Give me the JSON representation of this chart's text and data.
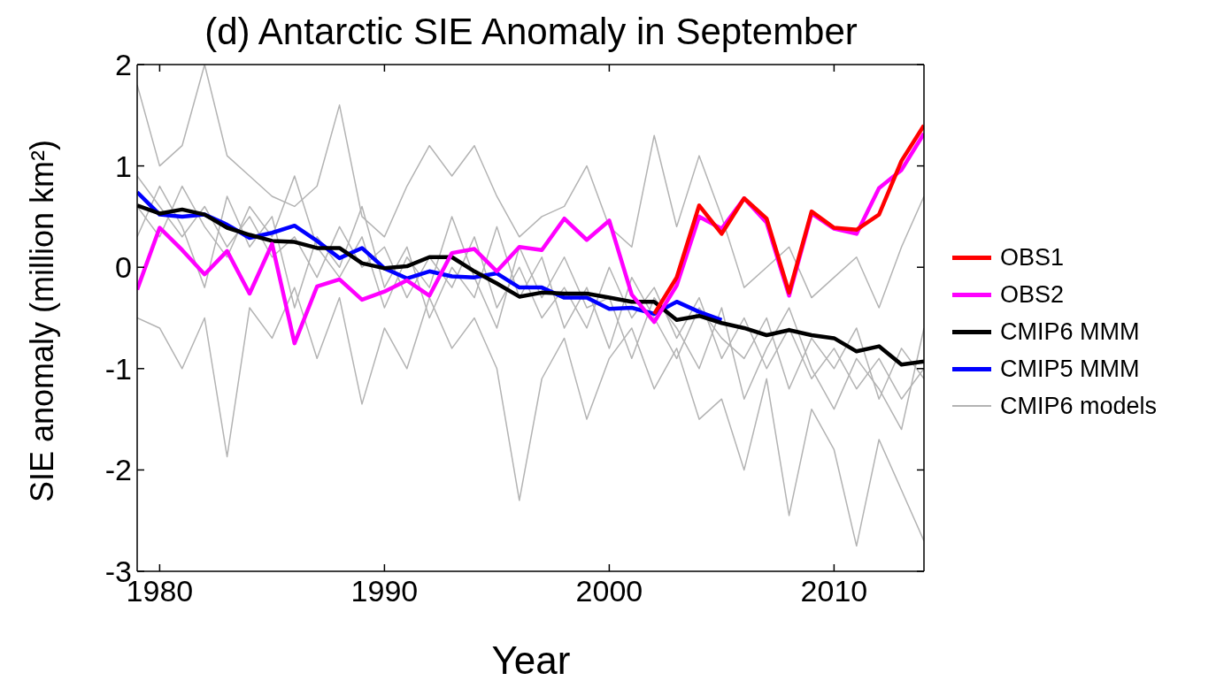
{
  "chart_data": {
    "type": "line",
    "title": "(d) Antarctic SIE Anomaly in September",
    "xlabel": "Year",
    "ylabel": "SIE anomaly (million km²)",
    "x": [
      1979,
      1980,
      1981,
      1982,
      1983,
      1984,
      1985,
      1986,
      1987,
      1988,
      1989,
      1990,
      1991,
      1992,
      1993,
      1994,
      1995,
      1996,
      1997,
      1998,
      1999,
      2000,
      2001,
      2002,
      2003,
      2004,
      2005,
      2006,
      2007,
      2008,
      2009,
      2010,
      2011,
      2012,
      2013,
      2014
    ],
    "xlim": [
      1979,
      2014
    ],
    "xticks": [
      1980,
      1990,
      2000,
      2010
    ],
    "ylim": [
      -3,
      2
    ],
    "yticks": [
      -3,
      -2,
      -1,
      0,
      1,
      2
    ],
    "legend": "right",
    "marker": "none",
    "line_style": "solid",
    "series": [
      {
        "name": "OBS1",
        "color": "#ff0000",
        "x": [
          2002,
          2003,
          2004,
          2005,
          2006,
          2007,
          2008,
          2009,
          2010,
          2011,
          2012,
          2013,
          2014
        ],
        "values": [
          -0.46,
          -0.1,
          0.61,
          0.33,
          0.68,
          0.48,
          -0.25,
          0.55,
          0.39,
          0.37,
          0.52,
          1.05,
          1.4
        ]
      },
      {
        "name": "OBS2",
        "color": "#ff00ff",
        "values": [
          -0.22,
          0.39,
          0.17,
          -0.07,
          0.16,
          -0.26,
          0.23,
          -0.75,
          -0.19,
          -0.12,
          -0.32,
          -0.24,
          -0.13,
          -0.28,
          0.14,
          0.18,
          -0.04,
          0.2,
          0.17,
          0.48,
          0.27,
          0.46,
          -0.27,
          -0.54,
          -0.18,
          0.5,
          0.38,
          0.68,
          0.44,
          -0.28,
          0.53,
          0.38,
          0.33,
          0.78,
          0.96,
          1.32
        ]
      },
      {
        "name": "CMIP6 MMM",
        "color": "#000000",
        "values": [
          0.61,
          0.53,
          0.57,
          0.52,
          0.39,
          0.32,
          0.26,
          0.25,
          0.19,
          0.19,
          0.04,
          -0.01,
          0.01,
          0.1,
          0.1,
          -0.04,
          -0.16,
          -0.29,
          -0.25,
          -0.26,
          -0.26,
          -0.3,
          -0.34,
          -0.34,
          -0.52,
          -0.48,
          -0.55,
          -0.6,
          -0.67,
          -0.62,
          -0.67,
          -0.7,
          -0.83,
          -0.78,
          -0.96,
          -0.93
        ]
      },
      {
        "name": "CMIP5 MMM",
        "color": "#0000ff",
        "x": [
          1979,
          1980,
          1981,
          1982,
          1983,
          1984,
          1985,
          1986,
          1987,
          1988,
          1989,
          1990,
          1991,
          1992,
          1993,
          1994,
          1995,
          1996,
          1997,
          1998,
          1999,
          2000,
          2001,
          2002,
          2003,
          2004,
          2005
        ],
        "values": [
          0.74,
          0.52,
          0.5,
          0.52,
          0.42,
          0.29,
          0.34,
          0.41,
          0.26,
          0.09,
          0.19,
          -0.01,
          -0.11,
          -0.04,
          -0.09,
          -0.1,
          -0.06,
          -0.2,
          -0.2,
          -0.3,
          -0.3,
          -0.41,
          -0.4,
          -0.46,
          -0.34,
          -0.44,
          -0.52
        ]
      },
      {
        "name": "CMIP6 models",
        "color": "#b3b3b3",
        "values": [
          1.8,
          1.0,
          1.2,
          2.0,
          1.1,
          0.9,
          0.7,
          0.6,
          0.8,
          1.6,
          0.5,
          0.3,
          0.8,
          1.2,
          0.9,
          1.2,
          0.7,
          0.3,
          0.5,
          0.6,
          1.0,
          0.4,
          0.2,
          1.3,
          0.4,
          1.1,
          0.5,
          -0.2,
          0.0,
          0.2,
          -0.3,
          -0.1,
          0.1,
          -0.4,
          0.2,
          0.7
        ]
      },
      {
        "color": "#b3b3b3",
        "values": [
          -0.5,
          -0.6,
          -1.0,
          -0.5,
          -1.87,
          -0.4,
          -0.7,
          -0.2,
          -0.9,
          -0.3,
          -1.35,
          -0.6,
          -1.0,
          -0.3,
          -0.8,
          -0.5,
          -1.0,
          -2.3,
          -1.1,
          -0.7,
          -1.5,
          -0.9,
          -0.6,
          -1.2,
          -0.8,
          -1.5,
          -1.3,
          -2.0,
          -1.1,
          -2.45,
          -1.4,
          -1.8,
          -2.75,
          -1.7,
          -2.2,
          -2.7
        ]
      },
      {
        "color": "#b3b3b3",
        "values": [
          0.9,
          0.6,
          0.3,
          0.6,
          0.2,
          0.5,
          0.1,
          0.3,
          -0.1,
          0.4,
          0.0,
          0.2,
          -0.3,
          0.1,
          -0.2,
          0.3,
          -0.4,
          0.0,
          -0.5,
          -0.2,
          -0.6,
          0.0,
          -0.5,
          -0.2,
          -0.7,
          -0.3,
          -0.9,
          -0.5,
          -1.0,
          -0.6,
          -1.1,
          -0.8,
          -1.2,
          -0.9,
          -1.3,
          -1.0
        ]
      },
      {
        "color": "#b3b3b3",
        "values": [
          0.3,
          0.8,
          0.4,
          -0.2,
          0.7,
          0.2,
          0.5,
          -0.4,
          0.3,
          0.0,
          0.6,
          -0.2,
          0.2,
          -0.5,
          0.0,
          -0.3,
          0.4,
          -0.3,
          0.1,
          -0.6,
          -0.2,
          -0.8,
          -0.1,
          -0.5,
          -0.9,
          -0.4,
          -0.7,
          -0.9,
          -0.5,
          -1.2,
          -0.7,
          -1.0,
          -0.6,
          -1.3,
          -0.8,
          -1.1
        ]
      },
      {
        "color": "#b3b3b3",
        "values": [
          0.6,
          0.3,
          0.8,
          0.4,
          0.1,
          0.6,
          0.3,
          0.9,
          0.2,
          -0.1,
          0.3,
          -0.4,
          0.1,
          -0.2,
          0.5,
          -0.1,
          -0.6,
          0.2,
          -0.3,
          0.1,
          -0.4,
          -0.3,
          -0.9,
          -0.3,
          -0.6,
          -1.0,
          -0.4,
          -1.3,
          -0.8,
          -0.4,
          -1.0,
          -1.4,
          -0.9,
          -1.2,
          -1.6,
          -0.6
        ]
      }
    ]
  }
}
